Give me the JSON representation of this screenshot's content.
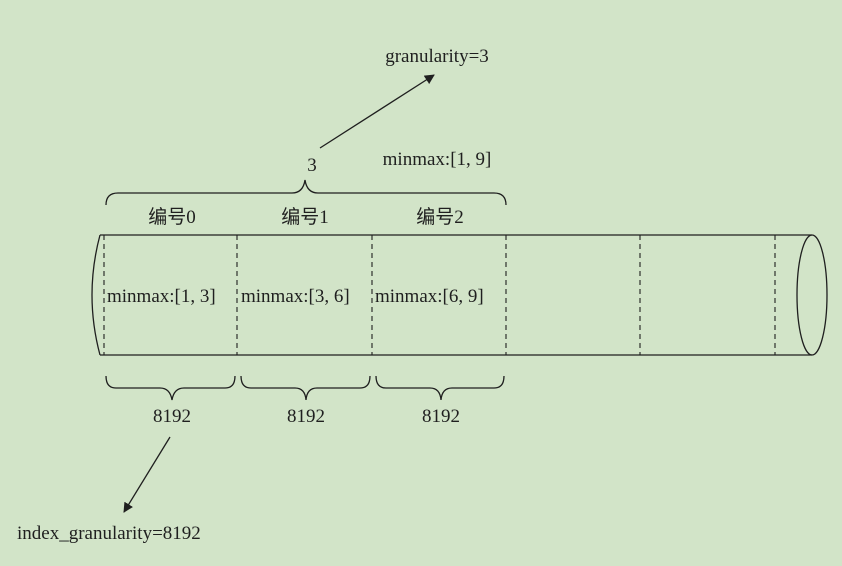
{
  "granularity_label": "granularity=3",
  "granule_rows_label": "3",
  "granule_minmax_label": "minmax:[1, 9]",
  "marks": [
    {
      "id": "0",
      "title": "编号0",
      "minmax": "minmax:[1, 3]",
      "rows": "8192"
    },
    {
      "id": "1",
      "title": "编号1",
      "minmax": "minmax:[3, 6]",
      "rows": "8192"
    },
    {
      "id": "2",
      "title": "编号2",
      "minmax": "minmax:[6, 9]",
      "rows": "8192"
    }
  ],
  "index_granularity_label": "index_granularity=8192",
  "colors": {
    "background": "#d2e4c8",
    "stroke": "#1f1f1f"
  }
}
